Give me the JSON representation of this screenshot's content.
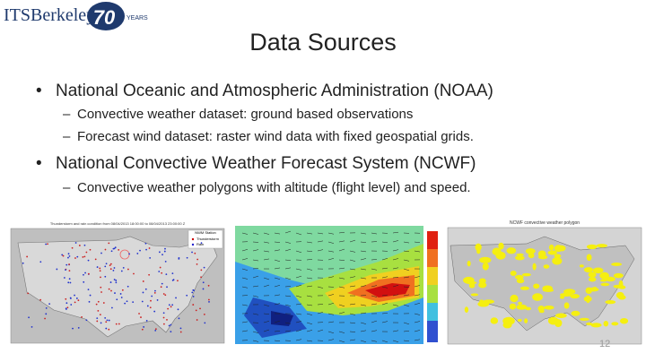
{
  "header": {
    "logo": "ITSBerkeley",
    "anniversary": "70",
    "years": "YEARS"
  },
  "title": "Data Sources",
  "bullets": [
    {
      "text": "National Oceanic and Atmospheric Administration (NOAA)",
      "subs": [
        "Convective weather dataset: ground based observations",
        "Forecast wind dataset: raster wind data with fixed geospatial grids."
      ]
    },
    {
      "text": "National Convective Weather Forecast System (NCWF)",
      "subs": [
        "Convective weather polygons with altitude (flight level) and speed."
      ]
    }
  ],
  "figures": {
    "map1": {
      "title": "Thunderstorm and rain condition from 08/04/2013 18:00:00 to 08/04/2013 23:00:00 Z",
      "legend": [
        "NWM Station",
        "Thunderstorm",
        "Rain"
      ]
    },
    "map3": {
      "title": "NCWF convective weather polygon"
    }
  },
  "page_number": "12"
}
